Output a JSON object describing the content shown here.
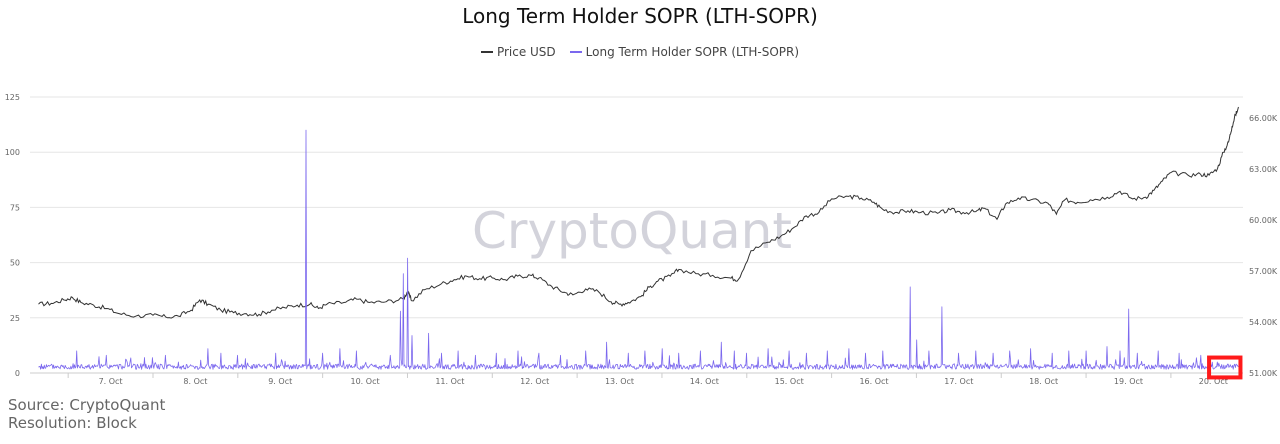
{
  "chart_data": {
    "type": "line",
    "title": "Long Term Holder SOPR (LTH-SOPR)",
    "watermark": "CryptoQuant",
    "x_ticks": [
      "7. Oct",
      "8. Oct",
      "9. Oct",
      "10. Oct",
      "11. Oct",
      "12. Oct",
      "13. Oct",
      "14. Oct",
      "15. Oct",
      "16. Oct",
      "17. Oct",
      "18. Oct",
      "19. Oct",
      "20. Oct"
    ],
    "y_left": {
      "ticks": [
        "0",
        "25",
        "50",
        "75",
        "100",
        "125"
      ],
      "range": [
        0,
        125
      ]
    },
    "y_right": {
      "ticks": [
        "51.00K",
        "54.00K",
        "57.00K",
        "60.00K",
        "63.00K",
        "66.00K"
      ],
      "range": [
        51000,
        67250
      ]
    },
    "x_range_days": [
      6.55,
      20.85
    ],
    "grid": true,
    "legend_position": "top-center",
    "series": [
      {
        "name": "Price USD",
        "color": "#333333",
        "axis": "right",
        "points": [
          [
            6.65,
            55050
          ],
          [
            6.8,
            55100
          ],
          [
            6.95,
            55300
          ],
          [
            7.05,
            55450
          ],
          [
            7.15,
            55150
          ],
          [
            7.3,
            55000
          ],
          [
            7.45,
            54800
          ],
          [
            7.6,
            54500
          ],
          [
            7.8,
            54350
          ],
          [
            8.0,
            54400
          ],
          [
            8.15,
            54300
          ],
          [
            8.3,
            54350
          ],
          [
            8.45,
            54700
          ],
          [
            8.55,
            55300
          ],
          [
            8.65,
            55050
          ],
          [
            8.8,
            54700
          ],
          [
            8.95,
            54550
          ],
          [
            9.1,
            54500
          ],
          [
            9.25,
            54450
          ],
          [
            9.4,
            54700
          ],
          [
            9.55,
            54850
          ],
          [
            9.7,
            55000
          ],
          [
            9.85,
            55050
          ],
          [
            9.95,
            54800
          ],
          [
            10.05,
            55050
          ],
          [
            10.25,
            55150
          ],
          [
            10.4,
            55350
          ],
          [
            10.55,
            55150
          ],
          [
            10.75,
            55200
          ],
          [
            10.95,
            55350
          ],
          [
            11.0,
            55800
          ],
          [
            11.05,
            55250
          ],
          [
            11.2,
            55900
          ],
          [
            11.4,
            56250
          ],
          [
            11.55,
            56500
          ],
          [
            11.7,
            56700
          ],
          [
            11.85,
            56550
          ],
          [
            12.0,
            56600
          ],
          [
            12.15,
            56500
          ],
          [
            12.3,
            56700
          ],
          [
            12.45,
            56750
          ],
          [
            12.55,
            56600
          ],
          [
            12.7,
            56100
          ],
          [
            12.85,
            55750
          ],
          [
            12.95,
            55600
          ],
          [
            13.1,
            55950
          ],
          [
            13.25,
            55800
          ],
          [
            13.4,
            55200
          ],
          [
            13.5,
            55050
          ],
          [
            13.6,
            55150
          ],
          [
            13.75,
            55500
          ],
          [
            13.85,
            56050
          ],
          [
            13.95,
            56400
          ],
          [
            14.1,
            56700
          ],
          [
            14.2,
            57100
          ],
          [
            14.4,
            56850
          ],
          [
            14.6,
            56750
          ],
          [
            14.8,
            56600
          ],
          [
            14.9,
            56500
          ],
          [
            15.05,
            58200
          ],
          [
            15.25,
            58700
          ],
          [
            15.4,
            59050
          ],
          [
            15.55,
            59550
          ],
          [
            15.7,
            60250
          ],
          [
            15.85,
            60450
          ],
          [
            16.0,
            61250
          ],
          [
            16.2,
            61400
          ],
          [
            16.35,
            61300
          ],
          [
            16.5,
            61050
          ],
          [
            16.6,
            60650
          ],
          [
            16.75,
            60450
          ],
          [
            16.9,
            60550
          ],
          [
            17.05,
            60450
          ],
          [
            17.25,
            60400
          ],
          [
            17.4,
            60600
          ],
          [
            17.55,
            60450
          ],
          [
            17.7,
            60500
          ],
          [
            17.8,
            60700
          ],
          [
            17.95,
            60050
          ],
          [
            18.05,
            60950
          ],
          [
            18.2,
            61300
          ],
          [
            18.35,
            61200
          ],
          [
            18.55,
            61000
          ],
          [
            18.65,
            60350
          ],
          [
            18.75,
            61200
          ],
          [
            18.9,
            61050
          ],
          [
            19.05,
            61200
          ],
          [
            19.25,
            61350
          ],
          [
            19.4,
            61700
          ],
          [
            19.55,
            61250
          ],
          [
            19.7,
            61350
          ],
          [
            19.8,
            61750
          ],
          [
            19.9,
            62300
          ],
          [
            20.0,
            62800
          ],
          [
            20.2,
            62650
          ],
          [
            20.35,
            62700
          ],
          [
            20.45,
            62650
          ],
          [
            20.55,
            63050
          ],
          [
            20.62,
            64000
          ],
          [
            20.68,
            64600
          ],
          [
            20.72,
            65500
          ],
          [
            20.76,
            66200
          ],
          [
            20.8,
            66600
          ]
        ]
      },
      {
        "name": "Long Term Holder SOPR (LTH-SOPR)",
        "color": "#7b68ee",
        "axis": "left",
        "baseline": 2.5,
        "spikes": [
          [
            6.8,
            4
          ],
          [
            7.1,
            10
          ],
          [
            7.45,
            8
          ],
          [
            7.9,
            7
          ],
          [
            8.15,
            8
          ],
          [
            8.3,
            5
          ],
          [
            8.65,
            11
          ],
          [
            8.8,
            9
          ],
          [
            9.0,
            8
          ],
          [
            9.45,
            9
          ],
          [
            9.8,
            110
          ],
          [
            10.0,
            9
          ],
          [
            10.2,
            11
          ],
          [
            10.4,
            10
          ],
          [
            10.8,
            8
          ],
          [
            10.92,
            28
          ],
          [
            10.95,
            45
          ],
          [
            11.0,
            52
          ],
          [
            11.05,
            17
          ],
          [
            11.25,
            18
          ],
          [
            11.4,
            9
          ],
          [
            11.6,
            10
          ],
          [
            11.8,
            8
          ],
          [
            12.05,
            9
          ],
          [
            12.3,
            10
          ],
          [
            12.55,
            9
          ],
          [
            12.8,
            8
          ],
          [
            13.1,
            10
          ],
          [
            13.35,
            14
          ],
          [
            13.6,
            9
          ],
          [
            13.8,
            10
          ],
          [
            14.0,
            11
          ],
          [
            14.2,
            9
          ],
          [
            14.45,
            10
          ],
          [
            14.7,
            14
          ],
          [
            14.85,
            10
          ],
          [
            15.0,
            9
          ],
          [
            15.25,
            11
          ],
          [
            15.5,
            10
          ],
          [
            15.7,
            9
          ],
          [
            15.95,
            10
          ],
          [
            16.2,
            11
          ],
          [
            16.4,
            9
          ],
          [
            16.6,
            10
          ],
          [
            16.93,
            39
          ],
          [
            17.0,
            15
          ],
          [
            17.15,
            10
          ],
          [
            17.3,
            30
          ],
          [
            17.5,
            9
          ],
          [
            17.7,
            10
          ],
          [
            17.9,
            9
          ],
          [
            18.1,
            10
          ],
          [
            18.35,
            11
          ],
          [
            18.6,
            9
          ],
          [
            18.8,
            10
          ],
          [
            19.0,
            10
          ],
          [
            19.25,
            12
          ],
          [
            19.4,
            10
          ],
          [
            19.5,
            29
          ],
          [
            19.6,
            9
          ],
          [
            19.85,
            10
          ],
          [
            20.1,
            9
          ],
          [
            20.35,
            8
          ],
          [
            20.55,
            5
          ]
        ]
      }
    ]
  },
  "annotation": {
    "type": "highlight-box",
    "color": "#ff1a1a",
    "x_range_days": [
      20.45,
      20.82
    ],
    "y_range_left": [
      -2,
      7
    ]
  },
  "footer": {
    "source": "Source: CryptoQuant",
    "resolution": "Resolution: Block"
  }
}
